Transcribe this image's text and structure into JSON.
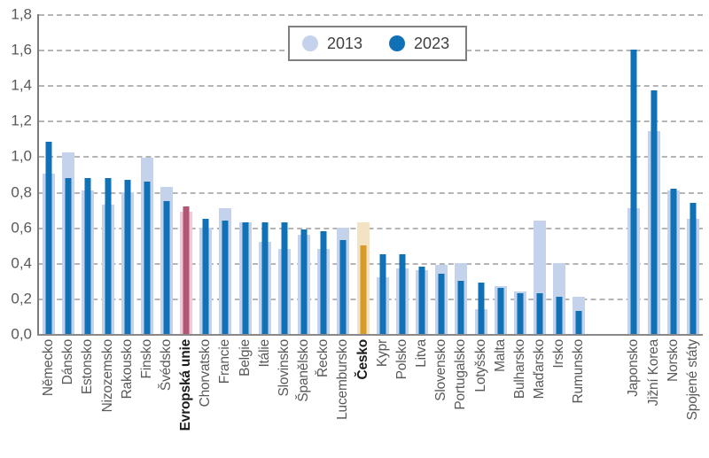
{
  "chart_data": {
    "type": "bar",
    "title": "",
    "grid": "horizontal-dashed",
    "legend_position": "top-center",
    "ylim": [
      0,
      1.8
    ],
    "ytick_step": 0.2,
    "ytick_labels": [
      "0,0",
      "0,2",
      "0,4",
      "0,6",
      "0,8",
      "1,0",
      "1,2",
      "1,4",
      "1,6",
      "1,8"
    ],
    "decimal_separator": ",",
    "legend": {
      "items": [
        {
          "label": "2013",
          "color": "#c5d2eb"
        },
        {
          "label": "2023",
          "color": "#1071b6"
        }
      ]
    },
    "colors": {
      "bar_2013": "#c5d2eb",
      "bar_2023": "#1071b6",
      "grid": "#b5b5b5",
      "axis": "#7a7a7a",
      "tick_text": "#595959",
      "highlight_text": "#1a1a1a"
    },
    "categories": [
      "Německo",
      "Dánsko",
      "Estonsko",
      "Nizozemsko",
      "Rakousko",
      "Finsko",
      "Švédsko",
      "Evropská unie",
      "Chorvatsko",
      "Francie",
      "Belgie",
      "Itálie",
      "Slovinsko",
      "Španělsko",
      "Řecko",
      "Lucembursko",
      "Česko",
      "Kypr",
      "Polsko",
      "Litva",
      "Slovensko",
      "Portugalsko",
      "Lotyšsko",
      "Malta",
      "Bulharsko",
      "Maďarsko",
      "Irsko",
      "Rumunsko",
      "Japonsko",
      "Jižní Korea",
      "Norsko",
      "Spojené státy"
    ],
    "series": [
      {
        "name": "2013",
        "values": [
          0.9,
          1.02,
          0.81,
          0.73,
          0.8,
          0.99,
          0.83,
          0.69,
          0.6,
          0.71,
          0.63,
          0.52,
          0.48,
          0.56,
          0.48,
          0.6,
          0.63,
          0.32,
          0.37,
          0.36,
          0.39,
          0.4,
          0.14,
          0.27,
          0.24,
          0.64,
          0.4,
          0.21,
          0.71,
          1.14,
          0.81,
          0.65
        ]
      },
      {
        "name": "2023",
        "values": [
          1.08,
          0.88,
          0.88,
          0.88,
          0.87,
          0.86,
          0.75,
          0.72,
          0.65,
          0.64,
          0.63,
          0.63,
          0.63,
          0.59,
          0.58,
          0.53,
          0.5,
          0.45,
          0.45,
          0.38,
          0.34,
          0.3,
          0.29,
          0.26,
          0.23,
          0.23,
          0.21,
          0.13,
          1.6,
          1.37,
          0.82,
          0.74
        ]
      }
    ],
    "highlights": {
      "Evropská unie": {
        "light": "#edccd8",
        "dark": "#b25677",
        "bold": true
      },
      "Česko": {
        "light": "#f3e3c3",
        "dark": "#d79b2a",
        "bold": true
      }
    },
    "group_gap_before": "Japonsko"
  }
}
